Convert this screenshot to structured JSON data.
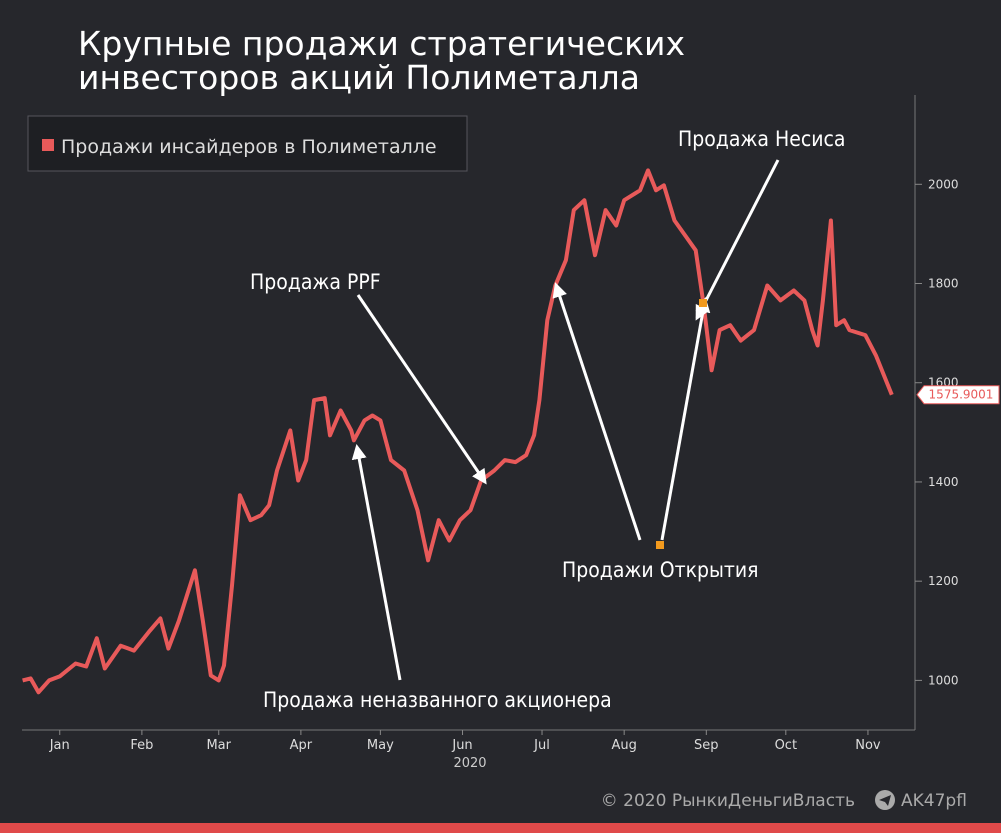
{
  "chart_data": {
    "type": "line",
    "title": [
      "Крупные продажи стратегических",
      "инвесторов акций Полиметалла"
    ],
    "x_label": "2020",
    "legend": "top-left",
    "series": [
      {
        "name": "Продажи инсайдеров в Полиметалле",
        "color": "#e85a5a",
        "x": [
          1,
          4,
          7,
          11,
          15,
          21,
          25,
          29,
          32,
          38,
          43,
          49,
          53,
          56,
          60,
          66,
          69,
          72,
          75,
          77,
          80,
          83,
          87,
          91,
          94,
          97,
          102,
          105,
          108,
          111,
          115,
          117,
          121,
          125,
          126,
          130,
          133,
          136,
          140,
          145,
          150,
          154,
          158,
          162,
          166,
          170,
          174,
          179,
          183,
          187,
          191,
          194,
          196,
          199,
          202,
          206,
          209,
          213,
          217,
          221,
          225,
          228,
          234,
          237,
          240,
          243,
          247,
          251,
          255,
          258,
          261,
          264,
          268,
          272,
          277,
          282,
          287,
          292,
          296,
          299,
          301,
          303,
          306,
          308,
          311,
          313,
          319,
          323,
          326,
          329
        ],
        "values": [
          1000,
          1004,
          976,
          1000,
          1008,
          1034,
          1028,
          1085,
          1024,
          1070,
          1060,
          1100,
          1125,
          1064,
          1121,
          1222,
          1121,
          1010,
          1000,
          1030,
          1191,
          1373,
          1323,
          1333,
          1353,
          1423,
          1504,
          1403,
          1444,
          1565,
          1569,
          1494,
          1544,
          1504,
          1484,
          1524,
          1534,
          1524,
          1444,
          1423,
          1343,
          1242,
          1323,
          1282,
          1323,
          1343,
          1403,
          1423,
          1444,
          1440,
          1454,
          1494,
          1565,
          1726,
          1796,
          1847,
          1948,
          1968,
          1857,
          1948,
          1917,
          1968,
          1988,
          2028,
          1988,
          1998,
          1927,
          1897,
          1867,
          1756,
          1625,
          1706,
          1716,
          1685,
          1706,
          1796,
          1766,
          1786,
          1766,
          1706,
          1675,
          1766,
          1927,
          1716,
          1726,
          1706,
          1696,
          1655,
          1615,
          1575.9001
        ]
      }
    ],
    "xlim": [
      0,
      337
    ],
    "xticks": [
      {
        "value": 15,
        "label": "Jan"
      },
      {
        "value": 46,
        "label": "Feb"
      },
      {
        "value": 75,
        "label": "Mar"
      },
      {
        "value": 106,
        "label": "Apr"
      },
      {
        "value": 136,
        "label": "May"
      },
      {
        "value": 167,
        "label": "Jun"
      },
      {
        "value": 197,
        "label": "Jul"
      },
      {
        "value": 228,
        "label": "Aug"
      },
      {
        "value": 259,
        "label": "Sep"
      },
      {
        "value": 289,
        "label": "Oct"
      },
      {
        "value": 320,
        "label": "Nov"
      }
    ],
    "ylim": [
      900,
      2180
    ],
    "yticks": [
      1000,
      1200,
      1400,
      1600,
      1800,
      2000
    ],
    "annotations": [
      "Продажа Несиса",
      "Продажа PPF",
      "Продажи Открытия",
      "Продажа неназванного акционера"
    ],
    "footer": [
      "© 2020 РынкиДеньгиВласть",
      "AK47pfl"
    ]
  }
}
